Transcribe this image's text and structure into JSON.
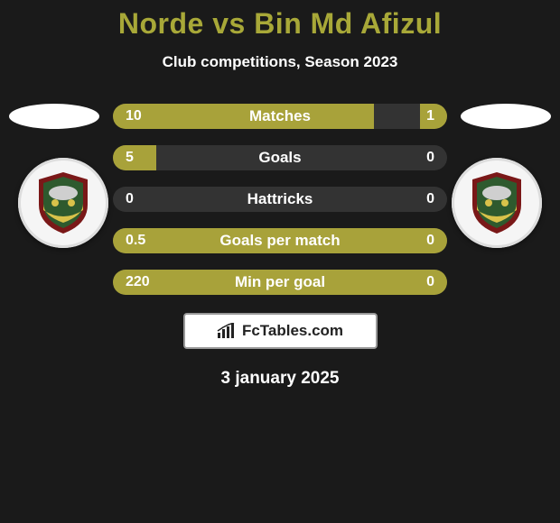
{
  "title": "Norde vs Bin Md Afizul",
  "subtitle": "Club competitions, Season 2023",
  "date": "3 january 2025",
  "footer_brand": "FcTables.com",
  "colors": {
    "background": "#1a1a1a",
    "accent": "#a8a23a",
    "title": "#a8a838",
    "text": "#ffffff",
    "footer_border": "#999999",
    "footer_bg": "#ffffff"
  },
  "crest_colors": {
    "outer": "#7a1818",
    "inner": "#2e5a2e",
    "band": "#d9c24a"
  },
  "stats": [
    {
      "label": "Matches",
      "left_val": "10",
      "right_val": "1",
      "left_pct": 78,
      "right_pct": 8
    },
    {
      "label": "Goals",
      "left_val": "5",
      "right_val": "0",
      "left_pct": 13,
      "right_pct": 0
    },
    {
      "label": "Hattricks",
      "left_val": "0",
      "right_val": "0",
      "left_pct": 0,
      "right_pct": 0
    },
    {
      "label": "Goals per match",
      "left_val": "0.5",
      "right_val": "0",
      "left_pct": 100,
      "right_pct": 0
    },
    {
      "label": "Min per goal",
      "left_val": "220",
      "right_val": "0",
      "left_pct": 100,
      "right_pct": 0
    }
  ]
}
